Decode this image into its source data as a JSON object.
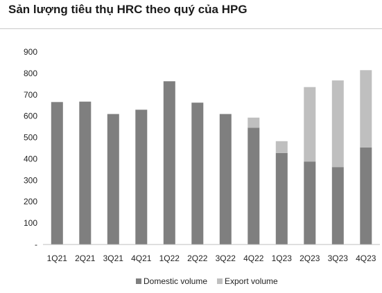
{
  "chart_data": {
    "type": "bar",
    "stacked": true,
    "title": "Sản lượng tiêu thụ HRC theo quý của HPG",
    "xlabel": "",
    "ylabel": "",
    "categories": [
      "1Q21",
      "2Q21",
      "3Q21",
      "4Q21",
      "1Q22",
      "2Q22",
      "3Q22",
      "4Q22",
      "1Q23",
      "2Q23",
      "3Q23",
      "4Q23"
    ],
    "series": [
      {
        "name": "Domestic volume",
        "color": "#7f7f7f",
        "values": [
          666,
          668,
          610,
          630,
          763,
          663,
          610,
          546,
          428,
          388,
          362,
          454
        ]
      },
      {
        "name": "Export volume",
        "color": "#bfbfbf",
        "values": [
          0,
          0,
          0,
          0,
          0,
          0,
          0,
          47,
          55,
          348,
          405,
          361
        ]
      }
    ],
    "ylim": [
      0,
      900
    ],
    "yticks": [
      "-",
      "100",
      "200",
      "300",
      "400",
      "500",
      "600",
      "700",
      "800",
      "900"
    ],
    "grid": false,
    "legend_position": "bottom"
  }
}
